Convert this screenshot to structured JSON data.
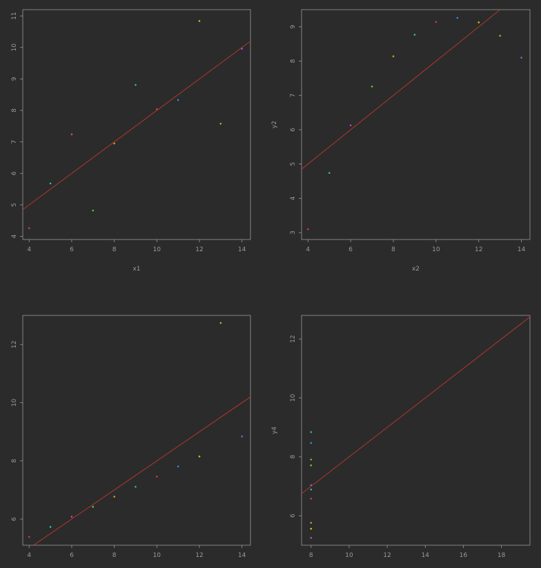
{
  "theme": {
    "background": "#2b2b2b",
    "axis_color": "#9a9a9a",
    "regression_color": "#c0392b"
  },
  "chart_data": [
    {
      "type": "scatter",
      "id": "panel1",
      "xlabel": "x1",
      "ylabel": "",
      "xlim": [
        3.7,
        14.4
      ],
      "ylim": [
        3.9,
        11.2
      ],
      "xticks": [
        4,
        6,
        8,
        10,
        12,
        14
      ],
      "yticks": [
        4,
        5,
        6,
        7,
        8,
        9,
        10,
        11
      ],
      "regression": {
        "intercept": 3.0,
        "slope": 0.5
      },
      "points": [
        {
          "x": 10,
          "y": 8.04,
          "color": "#e0393e"
        },
        {
          "x": 8,
          "y": 6.95,
          "color": "#d4a017"
        },
        {
          "x": 13,
          "y": 7.58,
          "color": "#7ac943"
        },
        {
          "x": 9,
          "y": 8.81,
          "color": "#2fbf9a"
        },
        {
          "x": 11,
          "y": 8.33,
          "color": "#3a8de0"
        },
        {
          "x": 14,
          "y": 9.96,
          "color": "#9b59d0"
        },
        {
          "x": 6,
          "y": 7.24,
          "color": "#d63fb5"
        },
        {
          "x": 4,
          "y": 4.26,
          "color": "#e0393e"
        },
        {
          "x": 12,
          "y": 10.84,
          "color": "#c8c81e"
        },
        {
          "x": 7,
          "y": 4.82,
          "color": "#5cc93a"
        },
        {
          "x": 5,
          "y": 5.68,
          "color": "#2fbf9a"
        }
      ]
    },
    {
      "type": "scatter",
      "id": "panel2",
      "xlabel": "x2",
      "ylabel": "y2",
      "xlim": [
        3.7,
        14.4
      ],
      "ylim": [
        2.8,
        9.5
      ],
      "xticks": [
        4,
        6,
        8,
        10,
        12,
        14
      ],
      "yticks": [
        3,
        4,
        5,
        6,
        7,
        8,
        9
      ],
      "regression": {
        "intercept": 3.0,
        "slope": 0.5
      },
      "points": [
        {
          "x": 10,
          "y": 9.14,
          "color": "#e0393e"
        },
        {
          "x": 8,
          "y": 8.14,
          "color": "#d4a017"
        },
        {
          "x": 13,
          "y": 8.74,
          "color": "#7ac943"
        },
        {
          "x": 9,
          "y": 8.77,
          "color": "#2fbf9a"
        },
        {
          "x": 11,
          "y": 9.26,
          "color": "#3a8de0"
        },
        {
          "x": 14,
          "y": 8.1,
          "color": "#9b59d0"
        },
        {
          "x": 6,
          "y": 6.13,
          "color": "#d63fb5"
        },
        {
          "x": 4,
          "y": 3.1,
          "color": "#e0393e"
        },
        {
          "x": 12,
          "y": 9.13,
          "color": "#c8c81e"
        },
        {
          "x": 7,
          "y": 7.26,
          "color": "#5cc93a"
        },
        {
          "x": 5,
          "y": 4.74,
          "color": "#2fbf9a"
        }
      ]
    },
    {
      "type": "scatter",
      "id": "panel3",
      "xlabel": "",
      "ylabel": "",
      "xlim": [
        3.7,
        14.4
      ],
      "ylim": [
        5.1,
        13.0
      ],
      "xticks": [
        4,
        6,
        8,
        10,
        12,
        14
      ],
      "yticks": [
        6,
        8,
        10,
        12
      ],
      "regression": {
        "intercept": 3.0,
        "slope": 0.5
      },
      "points": [
        {
          "x": 10,
          "y": 7.46,
          "color": "#e0393e"
        },
        {
          "x": 8,
          "y": 6.77,
          "color": "#d4a017"
        },
        {
          "x": 13,
          "y": 12.74,
          "color": "#7ac943"
        },
        {
          "x": 9,
          "y": 7.11,
          "color": "#2fbf9a"
        },
        {
          "x": 11,
          "y": 7.81,
          "color": "#3a8de0"
        },
        {
          "x": 14,
          "y": 8.84,
          "color": "#9b59d0"
        },
        {
          "x": 6,
          "y": 6.08,
          "color": "#d63fb5"
        },
        {
          "x": 4,
          "y": 5.39,
          "color": "#e0393e"
        },
        {
          "x": 12,
          "y": 8.15,
          "color": "#c8c81e"
        },
        {
          "x": 7,
          "y": 6.42,
          "color": "#5cc93a"
        },
        {
          "x": 5,
          "y": 5.73,
          "color": "#2fbf9a"
        }
      ]
    },
    {
      "type": "scatter",
      "id": "panel4",
      "xlabel": "",
      "ylabel": "y4",
      "xlim": [
        7.5,
        19.5
      ],
      "ylim": [
        5.0,
        12.8
      ],
      "xticks": [
        8,
        10,
        12,
        14,
        16,
        18
      ],
      "yticks": [
        6,
        8,
        10,
        12
      ],
      "regression": {
        "intercept": 3.0,
        "slope": 0.5
      },
      "points": [
        {
          "x": 8,
          "y": 6.58,
          "color": "#e0393e"
        },
        {
          "x": 8,
          "y": 5.76,
          "color": "#d4a017"
        },
        {
          "x": 8,
          "y": 7.71,
          "color": "#7ac943"
        },
        {
          "x": 8,
          "y": 8.84,
          "color": "#2fbf9a"
        },
        {
          "x": 8,
          "y": 8.47,
          "color": "#3a8de0"
        },
        {
          "x": 8,
          "y": 7.04,
          "color": "#9b59d0"
        },
        {
          "x": 8,
          "y": 5.25,
          "color": "#d63fb5"
        },
        {
          "x": 8,
          "y": 5.56,
          "color": "#c8c81e"
        },
        {
          "x": 8,
          "y": 7.91,
          "color": "#5cc93a"
        },
        {
          "x": 8,
          "y": 6.89,
          "color": "#2fbf9a"
        }
      ]
    }
  ]
}
